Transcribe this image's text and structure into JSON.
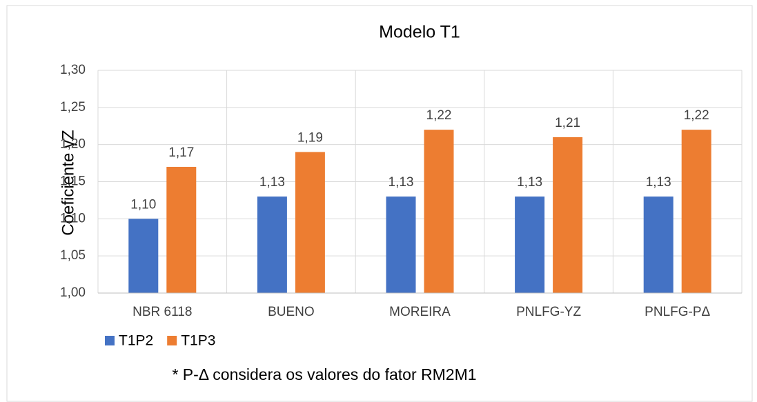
{
  "chart_data": {
    "type": "bar",
    "title": "Modelo T1",
    "y_label": "Coeficiente γZ",
    "categories": [
      "NBR 6118",
      "BUENO",
      "MOREIRA",
      "PNLFG-YZ",
      "PNLFG-PΔ"
    ],
    "series": [
      {
        "name": "T1P2",
        "color": "#4472c4",
        "values": [
          1.1,
          1.13,
          1.13,
          1.13,
          1.13
        ],
        "value_labels": [
          "1,10",
          "1,13",
          "1,13",
          "1,13",
          "1,13"
        ]
      },
      {
        "name": "T1P3",
        "color": "#ed7d31",
        "values": [
          1.17,
          1.19,
          1.22,
          1.21,
          1.22
        ],
        "value_labels": [
          "1,17",
          "1,19",
          "1,22",
          "1,21",
          "1,22"
        ]
      }
    ],
    "ylim": [
      1.0,
      1.3
    ],
    "yticks": [
      {
        "value": 1.0,
        "label": "1,00"
      },
      {
        "value": 1.05,
        "label": "1,05"
      },
      {
        "value": 1.1,
        "label": "1,10"
      },
      {
        "value": 1.15,
        "label": "1,15"
      },
      {
        "value": 1.2,
        "label": "1,20"
      },
      {
        "value": 1.25,
        "label": "1,25"
      },
      {
        "value": 1.3,
        "label": "1,30"
      }
    ],
    "grid": true,
    "legend": "bottom-left",
    "note": "* P-Δ considera os valores do fator RM2M1"
  }
}
